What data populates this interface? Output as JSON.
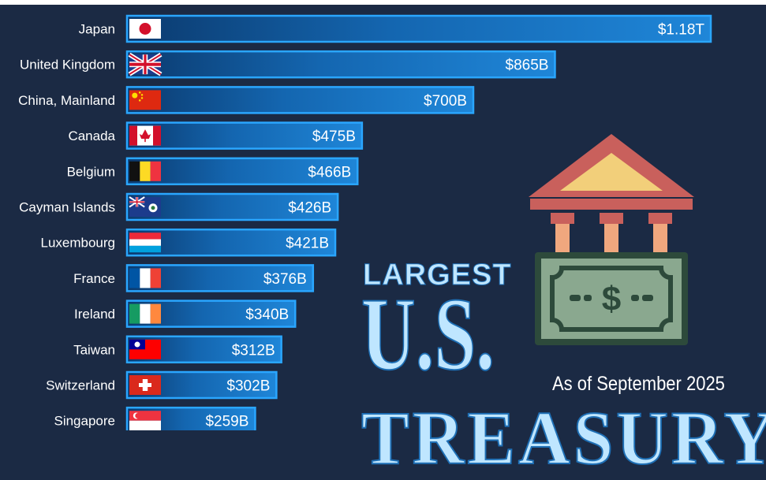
{
  "chart_data": {
    "type": "bar",
    "orientation": "horizontal",
    "categories": [
      "Japan",
      "United Kingdom",
      "China, Mainland",
      "Canada",
      "Belgium",
      "Cayman Islands",
      "Luxembourg",
      "France",
      "Ireland",
      "Taiwan",
      "Switzerland",
      "Singapore"
    ],
    "values": [
      1180,
      865,
      700,
      475,
      466,
      426,
      421,
      376,
      340,
      312,
      302,
      259
    ],
    "value_labels": [
      "$1.18T",
      "$865B",
      "$700B",
      "$475B",
      "$466B",
      "$426B",
      "$421B",
      "$376B",
      "$340B",
      "$312B",
      "$302B",
      "$259B"
    ],
    "unit": "billion USD",
    "xlim": [
      0,
      1180
    ],
    "grid": false,
    "bar_color": "#1f7fd0",
    "flags": [
      "japan",
      "uk",
      "china",
      "canada",
      "belgium",
      "cayman",
      "luxembourg",
      "france",
      "ireland",
      "taiwan",
      "switzerland",
      "singapore"
    ]
  },
  "headline": {
    "line1": "LARGEST",
    "line2": "U.S.",
    "line3": "TREASURY"
  },
  "date_note": "As of September 2025",
  "illustration": {
    "icon": "bank-money-icon",
    "money_symbol": "$",
    "colors": {
      "roof": "#c9605c",
      "roof_inner": "#f2cf7a",
      "pillar": "#f0a77e",
      "bill": "#8aa88f",
      "bill_dark": "#2d4a3b"
    }
  },
  "colors": {
    "background": "#1b2a44",
    "bar_edge": "#2aa6ff",
    "text": "#ffffff"
  }
}
